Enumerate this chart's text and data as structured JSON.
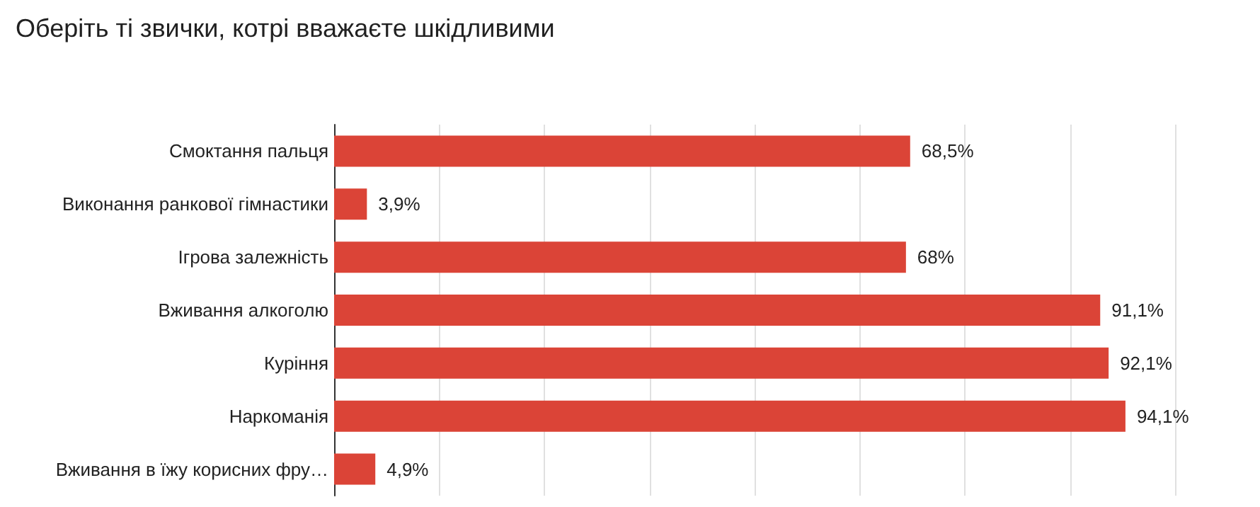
{
  "chart_data": {
    "type": "bar",
    "orientation": "horizontal",
    "title": "Оберіть ті звички, котрі вважаєте шкідливими",
    "categories": [
      "Смоктання пальця",
      "Виконання ранкової гімнастики",
      "Ігрова залежність",
      "Вживання алкоголю",
      "Куріння",
      "Наркоманія",
      "Вживання в їжу корисних фру…"
    ],
    "values": [
      68.5,
      3.9,
      68,
      91.1,
      92.1,
      94.1,
      4.9
    ],
    "value_labels": [
      "68,5%",
      "3,9%",
      "68%",
      "91,1%",
      "92,1%",
      "94,1%",
      "4,9%"
    ],
    "color": "#db4437",
    "xlim": [
      0,
      100
    ],
    "xticks": [
      {
        "value": 0,
        "label": null
      },
      {
        "value": 12.5,
        "label": null
      },
      {
        "value": 25,
        "label": null
      },
      {
        "value": 37.5,
        "label": null
      },
      {
        "value": 50,
        "label": null
      },
      {
        "value": 62.5,
        "label": null
      },
      {
        "value": 75,
        "label": null
      },
      {
        "value": 87.5,
        "label": null
      },
      {
        "value": 100,
        "label": null
      }
    ],
    "grid": "x",
    "tick_labels": "y"
  }
}
